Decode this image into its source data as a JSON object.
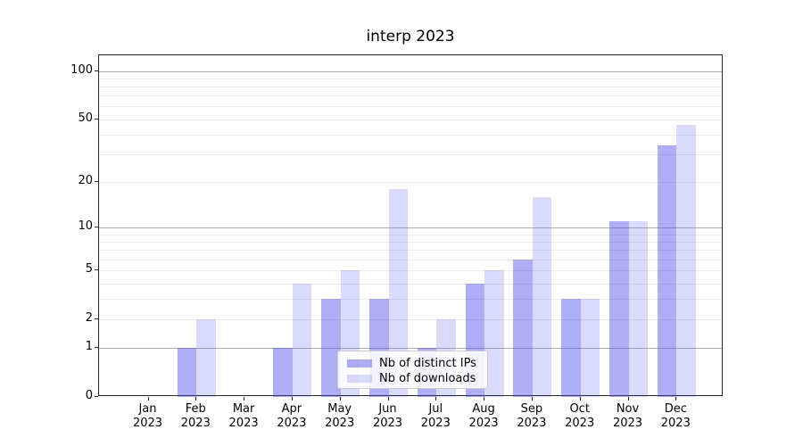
{
  "title": "interp 2023",
  "chart_data": {
    "type": "bar",
    "title": "interp 2023",
    "categories": [
      "Jan 2023",
      "Feb 2023",
      "Mar 2023",
      "Apr 2023",
      "May 2023",
      "Jun 2023",
      "Jul 2023",
      "Aug 2023",
      "Sep 2023",
      "Oct 2023",
      "Nov 2023",
      "Dec 2023"
    ],
    "series": [
      {
        "name": "Nb of distinct IPs",
        "color": "#acacf4",
        "values": [
          0,
          1,
          0,
          1,
          3,
          3,
          1,
          4,
          6,
          3,
          11,
          34
        ]
      },
      {
        "name": "Nb of downloads",
        "color": "#dadaf9",
        "values": [
          0,
          2,
          0,
          4,
          5,
          18,
          2,
          5,
          16,
          3,
          11,
          46
        ]
      }
    ],
    "xlabel": "",
    "ylabel": "",
    "y_scale": "log1p",
    "y_max": 125,
    "y_axis_ticks": [
      0,
      1,
      2,
      5,
      10,
      20,
      50,
      100
    ],
    "y_gridlines_minor": [
      2,
      3,
      4,
      5,
      6,
      7,
      8,
      9,
      20,
      30,
      40,
      50,
      60,
      70,
      80,
      90
    ],
    "y_gridlines_major": [
      1,
      10,
      100
    ],
    "grid": "on",
    "legend_position": "lower center inside plot"
  }
}
